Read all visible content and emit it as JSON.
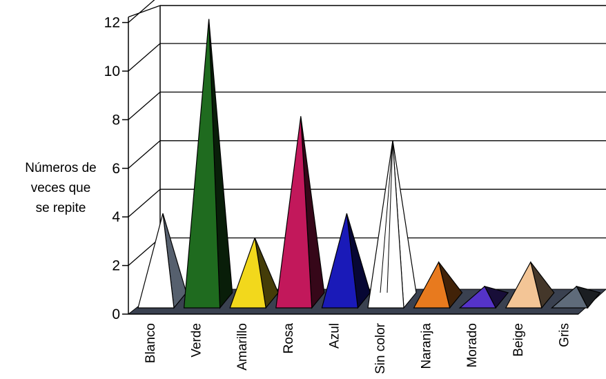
{
  "chart_data": {
    "type": "bar",
    "style": "3d-pyramid",
    "categories": [
      "Blanco",
      "Verde",
      "Amarillo",
      "Rosa",
      "Azul",
      "Sin color",
      "Naranja",
      "Morado",
      "Beige",
      "Gris"
    ],
    "values": [
      4,
      12,
      3,
      8,
      4,
      7,
      2,
      1,
      2,
      1
    ],
    "colors": [
      "#ffffff",
      "#1f6b1f",
      "#f2d81c",
      "#c2185b",
      "#1a1ab8",
      "#ffffff",
      "#e87a1e",
      "#5533c8",
      "#f3c596",
      "#5f6b7a"
    ],
    "ylabel_lines": [
      "Números de",
      "veces que",
      "se repite"
    ],
    "yticks": [
      0,
      2,
      4,
      6,
      8,
      10,
      12
    ],
    "ylim": [
      0,
      12
    ],
    "grid": true
  }
}
